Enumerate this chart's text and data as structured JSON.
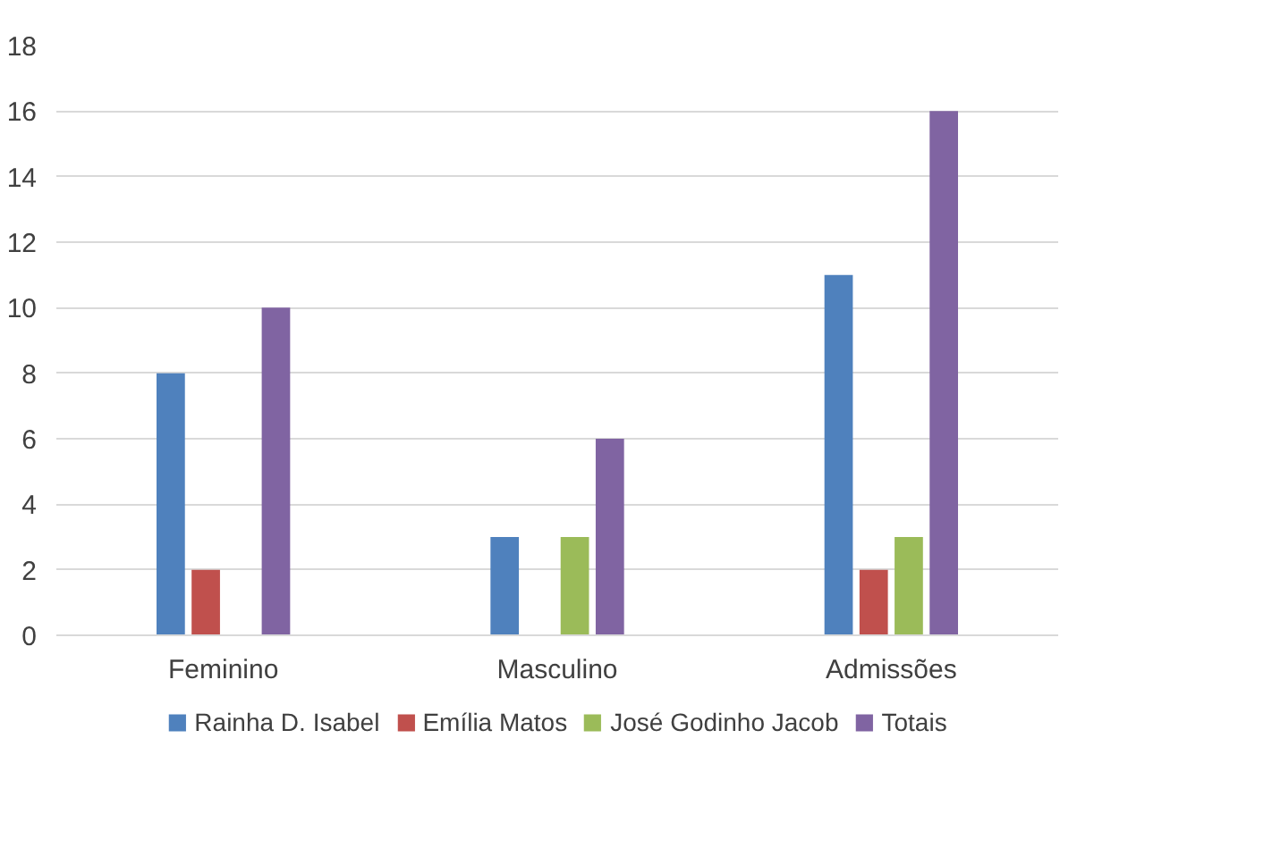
{
  "chart_data": {
    "type": "bar",
    "categories": [
      "Feminino",
      "Masculino",
      "Admissões"
    ],
    "series": [
      {
        "name": "Rainha D. Isabel",
        "color": "#4f81bd",
        "values": [
          8,
          3,
          11
        ]
      },
      {
        "name": "Emília Matos",
        "color": "#c0504d",
        "values": [
          2,
          0,
          2
        ]
      },
      {
        "name": "José Godinho Jacob",
        "color": "#9bbb59",
        "values": [
          0,
          3,
          3
        ]
      },
      {
        "name": "Totais",
        "color": "#8064a2",
        "values": [
          10,
          6,
          16
        ]
      }
    ],
    "ylim": [
      0,
      18
    ],
    "yticks": [
      0,
      2,
      4,
      6,
      8,
      10,
      12,
      14,
      16,
      18
    ],
    "grid": "y",
    "legend": "bottom"
  }
}
